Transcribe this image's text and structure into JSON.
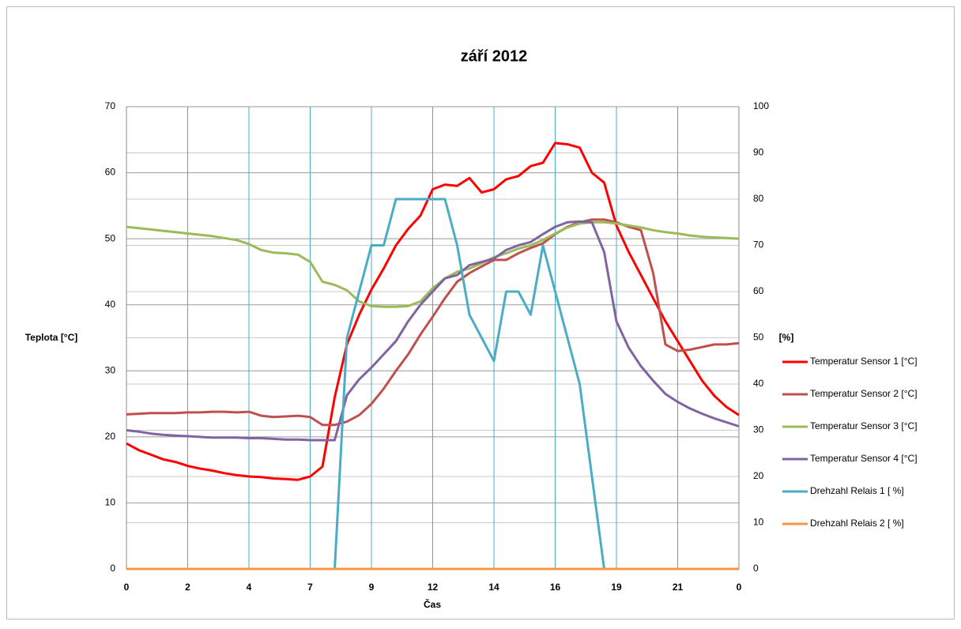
{
  "chart_data": {
    "type": "line",
    "title": "září 2012",
    "x_label": "Čas",
    "y_label": "Teplota [°C]",
    "y2_label": "[%]",
    "categories": [
      "0",
      null,
      null,
      null,
      null,
      "2",
      null,
      null,
      null,
      null,
      "4",
      null,
      null,
      null,
      null,
      "7",
      null,
      null,
      null,
      null,
      "9",
      null,
      null,
      null,
      null,
      "12",
      null,
      null,
      null,
      null,
      "14",
      null,
      null,
      null,
      null,
      "16",
      null,
      null,
      null,
      null,
      "19",
      null,
      null,
      null,
      null,
      "21",
      null,
      null,
      null,
      null,
      "0"
    ],
    "ylim": [
      0,
      70
    ],
    "yticks": [
      0,
      10,
      20,
      30,
      40,
      50,
      60,
      70
    ],
    "y2lim": [
      0,
      100
    ],
    "y2ticks": [
      0,
      10,
      20,
      30,
      40,
      50,
      60,
      70,
      80,
      90,
      100
    ],
    "grid": true,
    "legend": "right",
    "series": [
      {
        "name": "Temperatur Sensor 1 [°C]",
        "color": "#ff0000",
        "values": [
          19,
          18,
          17.3,
          16.6,
          16.2,
          15.6,
          15.2,
          14.9,
          14.5,
          14.2,
          14,
          13.9,
          13.7,
          13.6,
          13.5,
          14,
          15.5,
          26,
          34,
          38.5,
          42.3,
          45.5,
          49,
          51.5,
          53.5,
          57.5,
          58.2,
          58,
          59.2,
          57,
          57.5,
          59,
          59.5,
          61,
          61.5,
          64.5,
          64.3,
          63.8,
          60,
          58.5,
          52,
          48,
          44.5,
          41,
          37.5,
          34.5,
          31.5,
          28.5,
          26.2,
          24.5,
          23.3
        ]
      },
      {
        "name": "Temperatur Sensor 2 [°C]",
        "color": "#c0504d",
        "values": [
          23.4,
          23.5,
          23.6,
          23.6,
          23.6,
          23.7,
          23.7,
          23.8,
          23.8,
          23.7,
          23.8,
          23.2,
          23,
          23.1,
          23.2,
          23,
          21.8,
          21.8,
          22.3,
          23.3,
          25,
          27.3,
          30,
          32.5,
          35.5,
          38.2,
          41,
          43.5,
          44.8,
          45.8,
          46.8,
          46.8,
          47.8,
          48.6,
          49.3,
          50.7,
          51.8,
          52.5,
          52.9,
          52.9,
          52.5,
          51.8,
          51.3,
          44.8,
          34,
          33,
          33.2,
          33.6,
          34,
          34,
          34.2
        ]
      },
      {
        "name": "Temperatur Sensor 3 [°C]",
        "color": "#9bbb59",
        "values": [
          51.8,
          51.6,
          51.4,
          51.2,
          51,
          50.8,
          50.6,
          50.4,
          50.1,
          49.8,
          49.2,
          48.3,
          47.9,
          47.8,
          47.6,
          46.5,
          43.5,
          43,
          42.2,
          40.5,
          39.8,
          39.7,
          39.7,
          39.8,
          40.5,
          42.5,
          44,
          45,
          45.5,
          46.3,
          47.2,
          47.8,
          48.5,
          49,
          49.8,
          50.8,
          51.7,
          52.3,
          52.5,
          52.5,
          52.3,
          52,
          51.7,
          51.3,
          51,
          50.8,
          50.5,
          50.3,
          50.2,
          50.1,
          50
        ]
      },
      {
        "name": "Temperatur Sensor 4 [°C]",
        "color": "#8064a2",
        "values": [
          21,
          20.8,
          20.5,
          20.3,
          20.2,
          20.1,
          20,
          19.9,
          19.9,
          19.9,
          19.8,
          19.8,
          19.7,
          19.6,
          19.6,
          19.5,
          19.5,
          19.5,
          26.3,
          28.7,
          30.5,
          32.5,
          34.5,
          37.5,
          40,
          42,
          44,
          44.5,
          46,
          46.5,
          47,
          48.3,
          49,
          49.5,
          50.7,
          51.8,
          52.5,
          52.6,
          52.5,
          48,
          37.5,
          33.5,
          30.7,
          28.5,
          26.5,
          25.3,
          24.3,
          23.5,
          22.8,
          22.2,
          21.6
        ]
      },
      {
        "name": "Drehzahl Relais 1 [ %]",
        "color": "#4bacc6",
        "axis": "y2",
        "values": [
          0,
          0,
          0,
          0,
          0,
          0,
          0,
          0,
          0,
          0,
          0,
          0,
          0,
          0,
          0,
          0,
          0,
          0,
          50,
          60,
          70,
          70,
          80,
          80,
          80,
          80,
          80,
          70,
          55,
          50,
          45,
          60,
          60,
          55,
          70,
          60,
          50,
          40,
          20,
          0,
          0,
          0,
          0,
          0,
          0,
          0,
          0,
          0,
          0,
          0,
          0
        ]
      },
      {
        "name": "Drehzahl Relais 2 [ %]",
        "color": "#f79646",
        "axis": "y2",
        "values": [
          0,
          0,
          0,
          0,
          0,
          0,
          0,
          0,
          0,
          0,
          0,
          0,
          0,
          0,
          0,
          0,
          0,
          0,
          0,
          0,
          0,
          0,
          0,
          0,
          0,
          0,
          0,
          0,
          0,
          0,
          0,
          0,
          0,
          0,
          0,
          0,
          0,
          0,
          0,
          0,
          0,
          0,
          0,
          0,
          0,
          0,
          0,
          0,
          0,
          0,
          0
        ]
      }
    ]
  }
}
